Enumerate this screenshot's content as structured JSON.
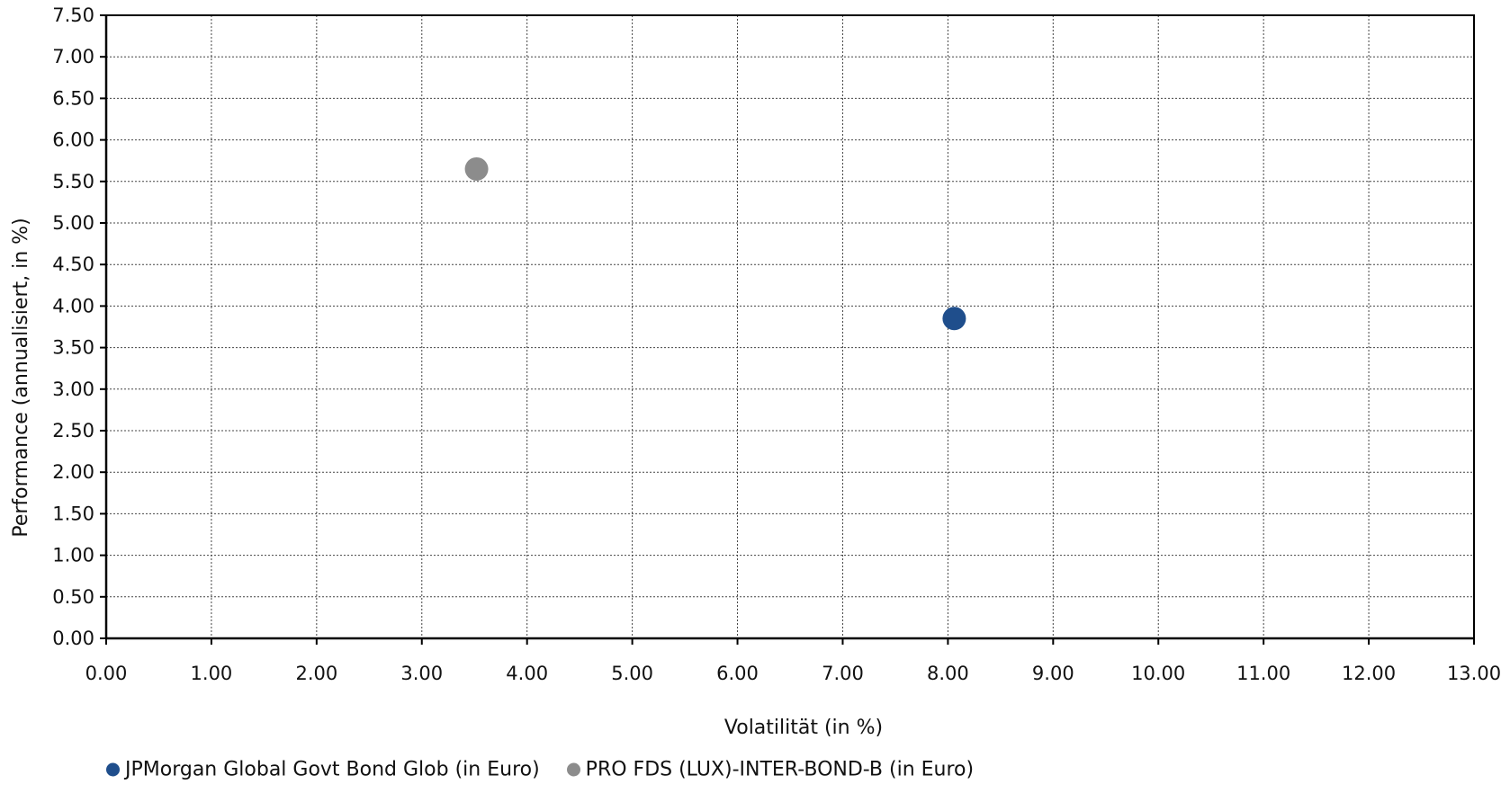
{
  "chart_data": {
    "type": "scatter",
    "title": "",
    "xlabel": "Volatilität (in %)",
    "ylabel": "Performance (annualisiert, in %)",
    "xlim": [
      0,
      13
    ],
    "ylim": [
      0,
      7.5
    ],
    "xticks": [
      "0.00",
      "1.00",
      "2.00",
      "3.00",
      "4.00",
      "5.00",
      "6.00",
      "7.00",
      "8.00",
      "9.00",
      "10.00",
      "11.00",
      "12.00",
      "13.00"
    ],
    "yticks": [
      "0.00",
      "0.50",
      "1.00",
      "1.50",
      "2.00",
      "2.50",
      "3.00",
      "3.50",
      "4.00",
      "4.50",
      "5.00",
      "5.50",
      "6.00",
      "6.50",
      "7.00",
      "7.50"
    ],
    "grid": true,
    "legend_position": "bottom",
    "series": [
      {
        "name": "JPMorgan Global Govt Bond Glob (in Euro)",
        "color": "#1f4e8c",
        "points": [
          {
            "x": 8.06,
            "y": 3.85
          }
        ]
      },
      {
        "name": "PRO FDS (LUX)-INTER-BOND-B (in Euro)",
        "color": "#8c8c8c",
        "points": [
          {
            "x": 3.52,
            "y": 5.65
          }
        ]
      }
    ]
  }
}
